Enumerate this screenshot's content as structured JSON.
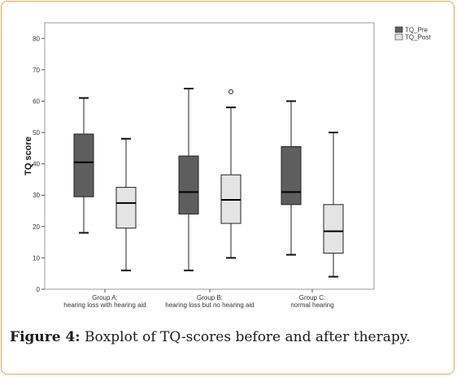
{
  "caption": {
    "lead": "Figure 4:",
    "text": " Boxplot of TQ-scores before and after therapy."
  },
  "chart_data": {
    "type": "boxplot",
    "ylabel": "TQ score",
    "ylim": [
      0,
      85
    ],
    "yticks": [
      0,
      10,
      20,
      30,
      40,
      50,
      60,
      70,
      80
    ],
    "legend_position": "top-right",
    "categories": [
      {
        "line1": "Group A:",
        "line2": "hearing loss with hearing aid"
      },
      {
        "line1": "Group B:",
        "line2": "hearing loss but no hearing aid"
      },
      {
        "line1": "Group C:",
        "line2": "normal hearing"
      }
    ],
    "series": [
      {
        "name": "TQ_Pre",
        "color": "#5e5e5e",
        "boxes": [
          {
            "min": 18,
            "q1": 29.5,
            "median": 40.5,
            "q3": 49.5,
            "max": 61,
            "outliers": []
          },
          {
            "min": 6,
            "q1": 24,
            "median": 31,
            "q3": 42.5,
            "max": 64,
            "outliers": []
          },
          {
            "min": 11,
            "q1": 27,
            "median": 31,
            "q3": 45.5,
            "max": 60,
            "outliers": []
          }
        ]
      },
      {
        "name": "TQ_Post",
        "color": "#e4e4e4",
        "boxes": [
          {
            "min": 6,
            "q1": 19.5,
            "median": 27.5,
            "q3": 32.5,
            "max": 48,
            "outliers": []
          },
          {
            "min": 10,
            "q1": 21,
            "median": 28.5,
            "q3": 36.5,
            "max": 58,
            "outliers": [
              63
            ]
          },
          {
            "min": 4,
            "q1": 11.5,
            "median": 18.5,
            "q3": 27,
            "max": 50,
            "outliers": []
          }
        ]
      }
    ]
  }
}
